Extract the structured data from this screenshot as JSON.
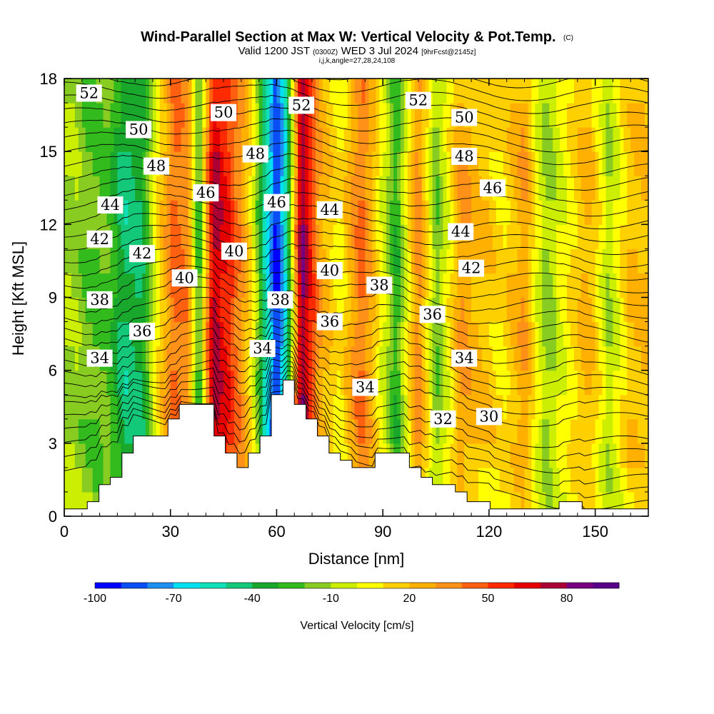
{
  "chart_data": {
    "type": "heatmap",
    "title": "Wind-Parallel Section at Max W: Vertical Velocity & Pot.Temp.",
    "title_mark": "(C)",
    "subtitle_parts": [
      "Valid 1200 JST ",
      "(0300Z)",
      " WED 3 Jul 2024 ",
      "[9hrFcst@2145z]"
    ],
    "grid_info": "i,j,k,angle=27,28,24,108",
    "xlabel": "Distance [nm]",
    "ylabel": "Height [Kft MSL]",
    "xlim": [
      0,
      165
    ],
    "ylim": [
      0,
      18
    ],
    "x_ticks": [
      "0",
      "30",
      "60",
      "90",
      "120",
      "150"
    ],
    "y_ticks": [
      "0",
      "3",
      "6",
      "9",
      "12",
      "15",
      "18"
    ],
    "colorbar": {
      "label": "Vertical Velocity [cm/s]",
      "tick_labels": [
        "-100",
        "-70",
        "-40",
        "-10",
        "20",
        "50",
        "80"
      ],
      "colors": [
        "#0000ff",
        "#0a4ef5",
        "#1c8ff0",
        "#00e0f0",
        "#10e0b8",
        "#14c87a",
        "#1aa82c",
        "#33bb1e",
        "#88cc22",
        "#ccee00",
        "#ffff00",
        "#ffd000",
        "#ffb000",
        "#ff9018",
        "#ff6010",
        "#ff2a00",
        "#e60000",
        "#aa0033",
        "#780080",
        "#58008a"
      ]
    },
    "velocity_columns": [
      {
        "x": 3,
        "w": -12
      },
      {
        "x": 8,
        "w": -22
      },
      {
        "x": 12,
        "w": -20
      },
      {
        "x": 17,
        "w": -45
      },
      {
        "x": 22,
        "w": -40
      },
      {
        "x": 26,
        "w": 5
      },
      {
        "x": 31,
        "w": 45
      },
      {
        "x": 35,
        "w": 35
      },
      {
        "x": 38,
        "w": -30
      },
      {
        "x": 42,
        "w": 75
      },
      {
        "x": 47,
        "w": 55
      },
      {
        "x": 53,
        "w": 10
      },
      {
        "x": 57,
        "w": -55
      },
      {
        "x": 60,
        "w": -95
      },
      {
        "x": 63,
        "w": -50
      },
      {
        "x": 67,
        "w": 85
      },
      {
        "x": 72,
        "w": 30
      },
      {
        "x": 78,
        "w": 5
      },
      {
        "x": 84,
        "w": 45
      },
      {
        "x": 90,
        "w": 0
      },
      {
        "x": 94,
        "w": -30
      },
      {
        "x": 100,
        "w": 40
      },
      {
        "x": 105,
        "w": -20
      },
      {
        "x": 112,
        "w": 30
      },
      {
        "x": 118,
        "w": 20
      },
      {
        "x": 124,
        "w": 10
      },
      {
        "x": 130,
        "w": 30
      },
      {
        "x": 136,
        "w": -15
      },
      {
        "x": 142,
        "w": 5
      },
      {
        "x": 148,
        "w": 25
      },
      {
        "x": 154,
        "w": -10
      },
      {
        "x": 160,
        "w": 20
      }
    ],
    "terrain_kft": [
      [
        0,
        0.3
      ],
      [
        6.5,
        0.6
      ],
      [
        9.8,
        1.3
      ],
      [
        13,
        1.6
      ],
      [
        16.3,
        2.6
      ],
      [
        19.5,
        3.3
      ],
      [
        29.3,
        4.0
      ],
      [
        32.5,
        4.6
      ],
      [
        42.3,
        3.3
      ],
      [
        45.5,
        2.6
      ],
      [
        48.8,
        2.0
      ],
      [
        52,
        2.6
      ],
      [
        55.3,
        3.3
      ],
      [
        58.5,
        5.0
      ],
      [
        61.8,
        5.6
      ],
      [
        65,
        4.6
      ],
      [
        68.3,
        4.0
      ],
      [
        71.5,
        3.3
      ],
      [
        74.8,
        2.6
      ],
      [
        78,
        2.3
      ],
      [
        81.3,
        2.0
      ],
      [
        87.8,
        2.6
      ],
      [
        97.5,
        2.0
      ],
      [
        100.8,
        1.6
      ],
      [
        104,
        1.3
      ],
      [
        110.5,
        1.0
      ],
      [
        113.8,
        0.6
      ],
      [
        120.3,
        0.3
      ],
      [
        139.8,
        0.6
      ],
      [
        146.3,
        0.3
      ],
      [
        165,
        0.3
      ]
    ],
    "theta_contour_labels": [
      {
        "x": 7,
        "y": 17.4,
        "text": "52"
      },
      {
        "x": 21,
        "y": 15.9,
        "text": "50"
      },
      {
        "x": 26,
        "y": 14.4,
        "text": "48"
      },
      {
        "x": 13,
        "y": 12.8,
        "text": "44"
      },
      {
        "x": 10,
        "y": 11.4,
        "text": "42"
      },
      {
        "x": 22,
        "y": 10.8,
        "text": "42"
      },
      {
        "x": 10,
        "y": 8.9,
        "text": "38"
      },
      {
        "x": 22,
        "y": 7.6,
        "text": "36"
      },
      {
        "x": 10,
        "y": 6.5,
        "text": "34"
      },
      {
        "x": 45,
        "y": 16.6,
        "text": "50"
      },
      {
        "x": 40,
        "y": 13.3,
        "text": "46"
      },
      {
        "x": 54,
        "y": 14.9,
        "text": "48"
      },
      {
        "x": 48,
        "y": 10.9,
        "text": "40"
      },
      {
        "x": 34,
        "y": 9.8,
        "text": "40"
      },
      {
        "x": 56,
        "y": 6.9,
        "text": "34"
      },
      {
        "x": 67,
        "y": 16.9,
        "text": "52"
      },
      {
        "x": 60,
        "y": 12.9,
        "text": "46"
      },
      {
        "x": 61,
        "y": 8.9,
        "text": "38"
      },
      {
        "x": 75,
        "y": 12.6,
        "text": "44"
      },
      {
        "x": 75,
        "y": 10.1,
        "text": "40"
      },
      {
        "x": 75,
        "y": 8.0,
        "text": "36"
      },
      {
        "x": 89,
        "y": 9.5,
        "text": "38"
      },
      {
        "x": 85,
        "y": 5.3,
        "text": "34"
      },
      {
        "x": 100,
        "y": 17.1,
        "text": "52"
      },
      {
        "x": 113,
        "y": 16.4,
        "text": "50"
      },
      {
        "x": 113,
        "y": 14.8,
        "text": "48"
      },
      {
        "x": 121,
        "y": 13.5,
        "text": "46"
      },
      {
        "x": 112,
        "y": 11.7,
        "text": "44"
      },
      {
        "x": 115,
        "y": 10.2,
        "text": "42"
      },
      {
        "x": 104,
        "y": 8.3,
        "text": "36"
      },
      {
        "x": 113,
        "y": 6.5,
        "text": "34"
      },
      {
        "x": 107,
        "y": 4.0,
        "text": "32"
      },
      {
        "x": 120,
        "y": 4.1,
        "text": "30"
      }
    ]
  }
}
